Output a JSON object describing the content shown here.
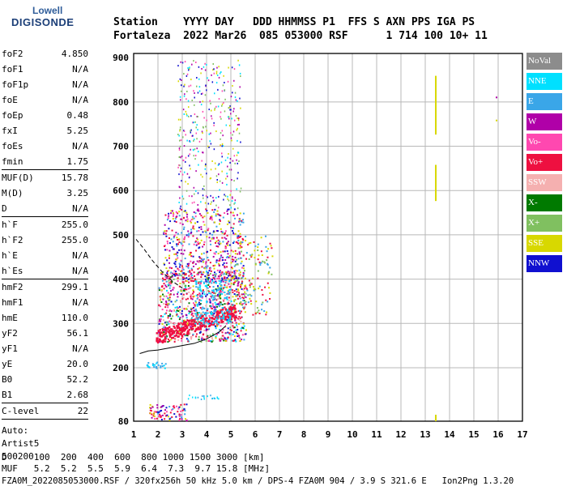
{
  "logo": {
    "top": "Lowell",
    "bottom": "DIGISONDE"
  },
  "header": {
    "line1": "Station    YYYY DAY   DDD HHMMSS P1  FFS S AXN PPS IGA PS",
    "line2": "Fortaleza  2022 Mar26  085 053000 RSF      1 714 100 10+ 11"
  },
  "params": [
    [
      [
        "foF2",
        "4.850"
      ],
      [
        "foF1",
        "N/A"
      ],
      [
        "foF1p",
        "N/A"
      ],
      [
        "foE",
        "N/A"
      ],
      [
        "foEp",
        "0.48"
      ],
      [
        "fxI",
        "5.25"
      ],
      [
        "foEs",
        "N/A"
      ],
      [
        "fmin",
        "1.75"
      ]
    ],
    [
      [
        "MUF(D)",
        "15.78"
      ],
      [
        "M(D)",
        "3.25"
      ],
      [
        "D",
        "N/A"
      ]
    ],
    [
      [
        "h`F",
        "255.0"
      ],
      [
        "h`F2",
        "255.0"
      ],
      [
        "h`E",
        "N/A"
      ],
      [
        "h`Es",
        "N/A"
      ]
    ],
    [
      [
        "hmF2",
        "299.1"
      ],
      [
        "hmF1",
        "N/A"
      ],
      [
        "hmE",
        "110.0"
      ],
      [
        "yF2",
        "56.1"
      ],
      [
        "yF1",
        "N/A"
      ],
      [
        "yE",
        "20.0"
      ],
      [
        "B0",
        "52.2"
      ],
      [
        "B1",
        "2.68"
      ]
    ],
    [
      [
        "C-level",
        "22"
      ]
    ]
  ],
  "auto": {
    "line1": "Auto:",
    "line2": "Artist5",
    "line3": "500200"
  },
  "legend": [
    {
      "label": "NoVal",
      "color": "#8c8c8c"
    },
    {
      "label": "NNE",
      "color": "#00e0ff"
    },
    {
      "label": "E",
      "color": "#3aa6e8"
    },
    {
      "label": "W",
      "color": "#b000a8"
    },
    {
      "label": "Vo-",
      "color": "#ff48b0"
    },
    {
      "label": "Vo+",
      "color": "#ee1040"
    },
    {
      "label": "SSW",
      "color": "#f5b0b0"
    },
    {
      "label": "X-",
      "color": "#007a00"
    },
    {
      "label": "X+",
      "color": "#80c060"
    },
    {
      "label": "SSE",
      "color": "#d8d800"
    },
    {
      "label": "NNW",
      "color": "#1010d0"
    }
  ],
  "axes": {
    "x_ticks": [
      "1",
      "2",
      "3",
      "4",
      "5",
      "6",
      "7",
      "8",
      "9",
      "10",
      "11",
      "12",
      "13",
      "14",
      "15",
      "16",
      "17"
    ],
    "y_ticks": [
      "80",
      "200",
      "300",
      "400",
      "500",
      "600",
      "700",
      "800",
      "900"
    ]
  },
  "bottom": {
    "d_line": "D     100  200  400  600  800 1000 1500 3000 [km]",
    "muf_line": "MUF   5.2  5.2  5.5  5.9  6.4  7.3  9.7 15.8 [MHz]",
    "footer": "FZA0M_2022085053000.RSF / 320fx256h 50 kHz 5.0 km / DPS-4 FZA0M 904 / 3.9 S 321.6 E   Ion2Png 1.3.20"
  }
}
